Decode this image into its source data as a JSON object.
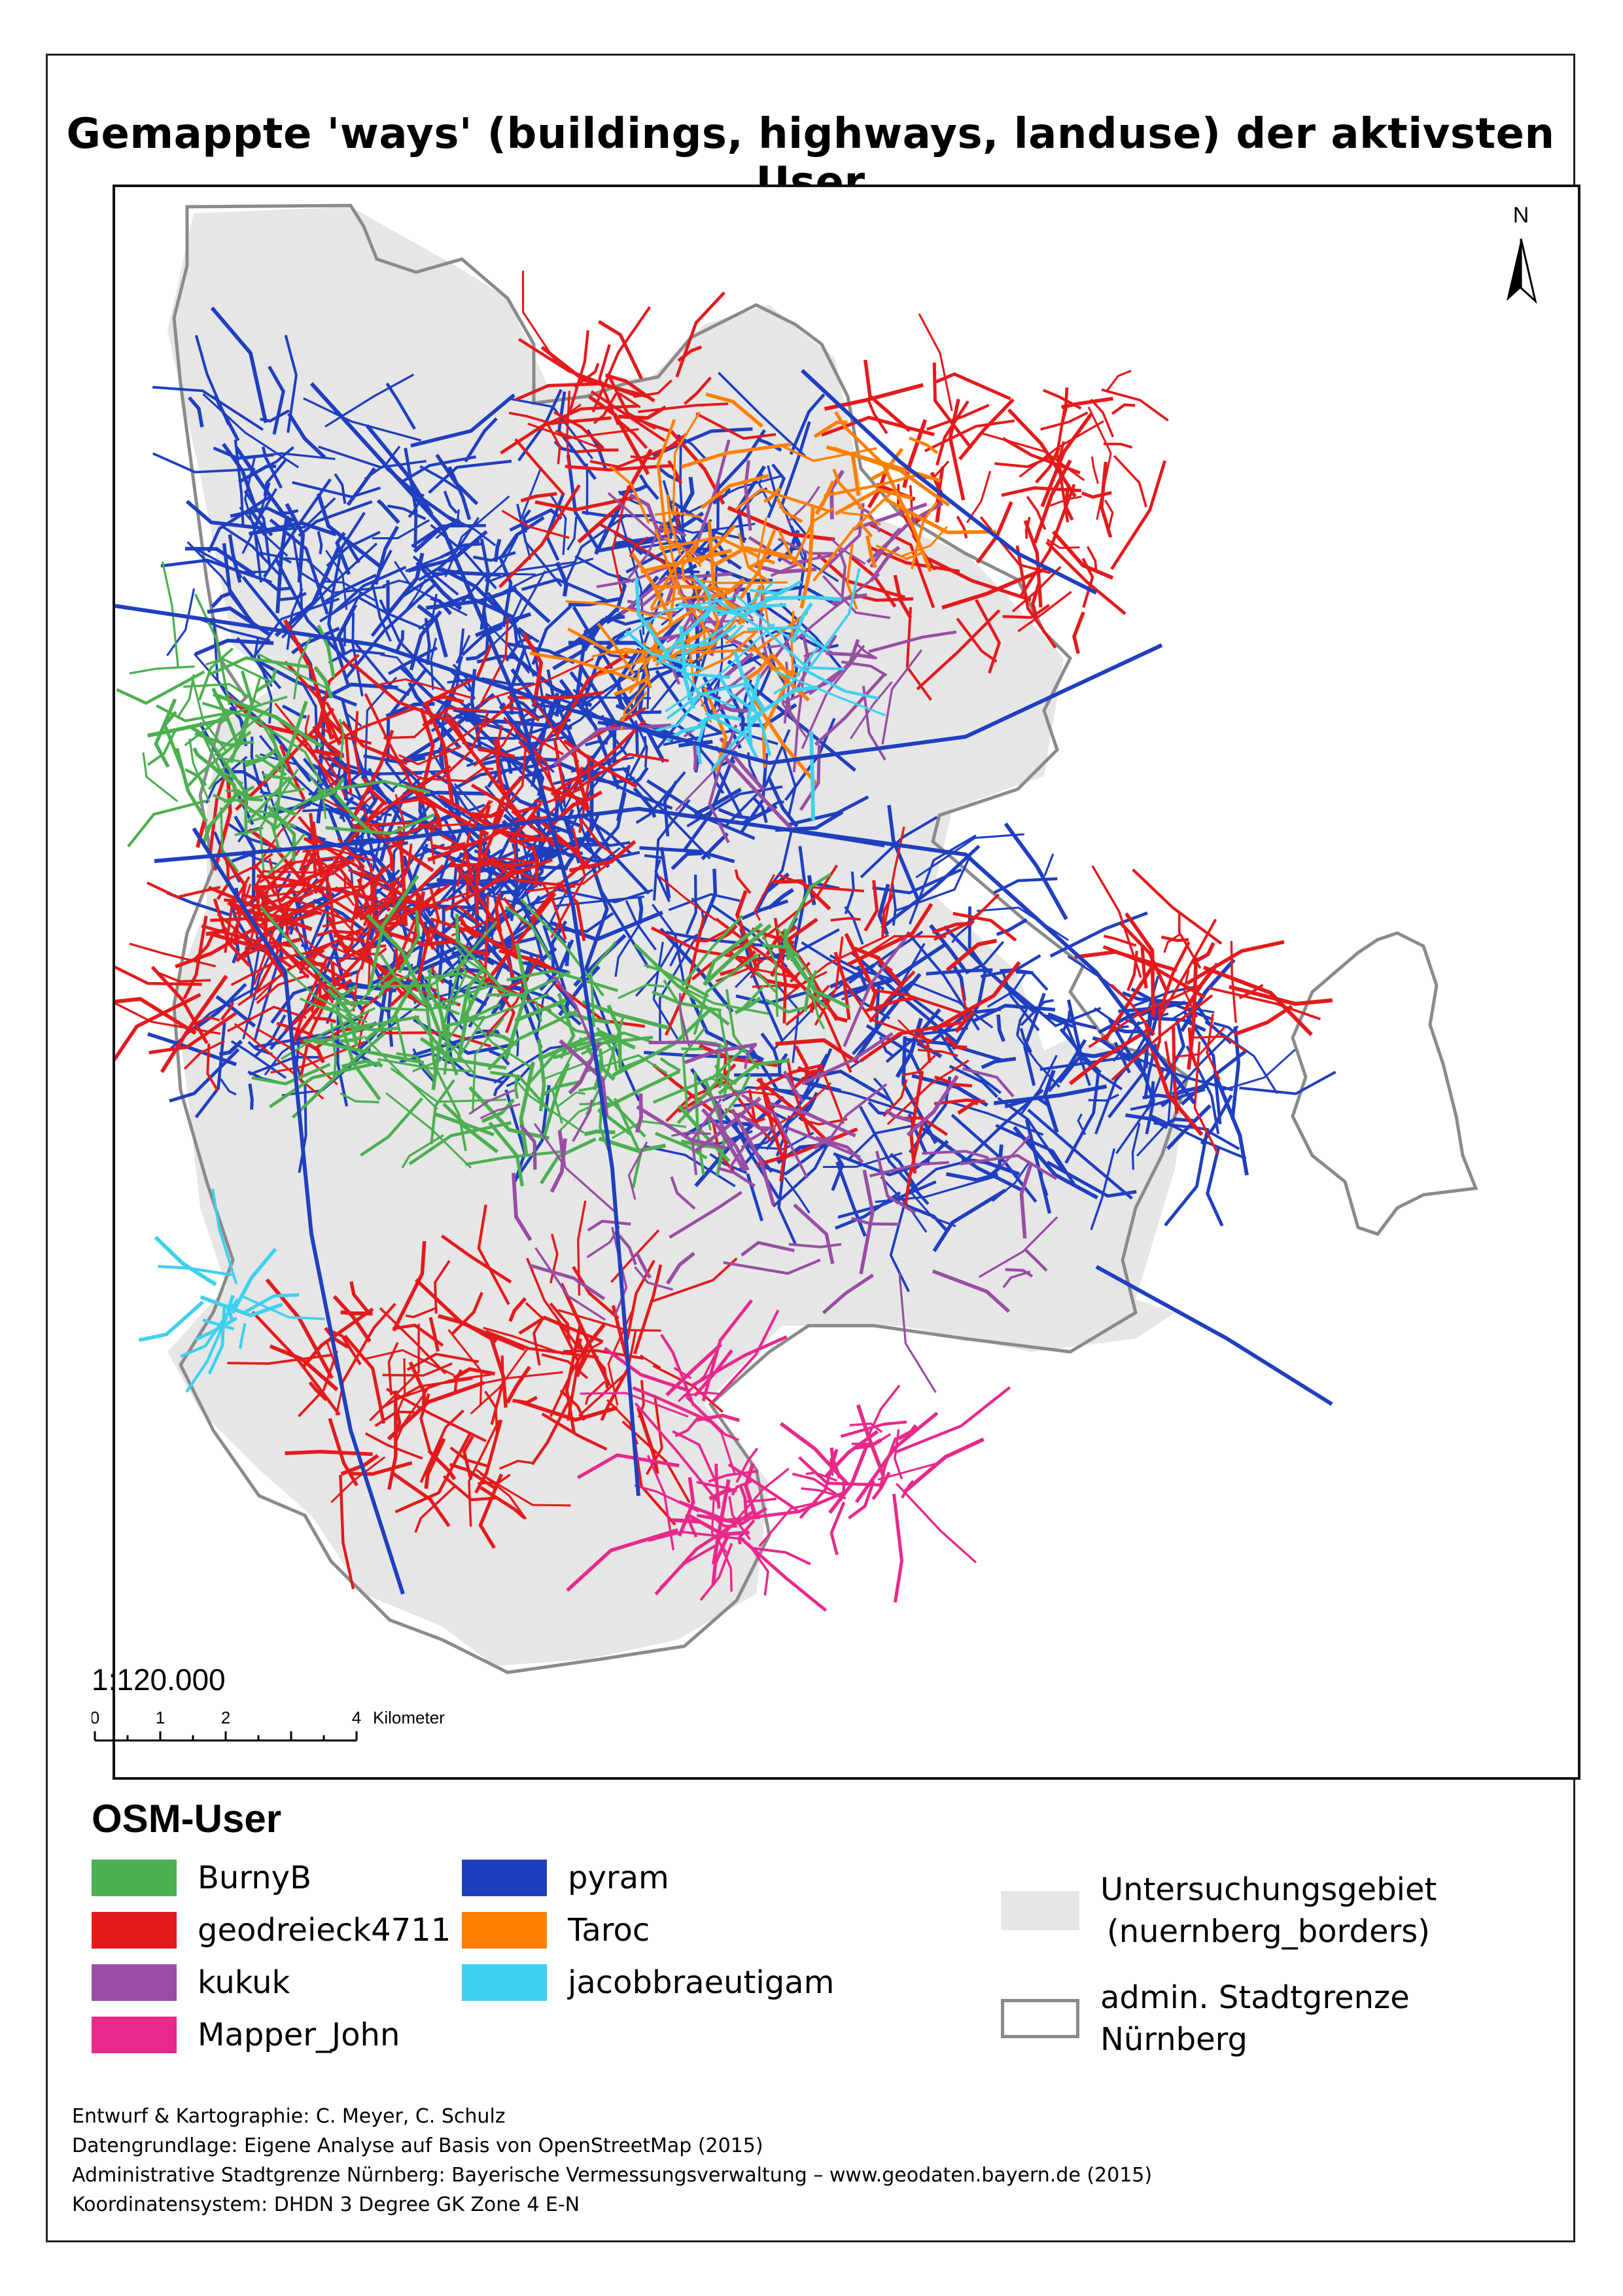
{
  "title": "Gemappte 'ways' (buildings, highways, landuse) der aktivsten User",
  "north_arrow_label": "N",
  "scale": {
    "ratio_label": "1:120.000",
    "tick_labels": [
      "0",
      "1",
      "2",
      "4"
    ],
    "unit_label": "Kilometer"
  },
  "legend": {
    "heading": "OSM-User",
    "users": [
      {
        "name": "BurnyB",
        "color": "#4caf50"
      },
      {
        "name": "geodreieck4711",
        "color": "#e31a1c"
      },
      {
        "name": "kukuk",
        "color": "#984ea3"
      },
      {
        "name": "Mapper_John",
        "color": "#e7298a"
      },
      {
        "name": "pyram",
        "color": "#1f3fbf"
      },
      {
        "name": "Taroc",
        "color": "#ff7f00"
      },
      {
        "name": "jacobbraeutigam",
        "color": "#3fd0f0"
      }
    ],
    "study_area": {
      "line1": "Untersuchungsgebiet",
      "line2": "(nuernberg_borders)",
      "color": "#e6e6e6"
    },
    "admin_border": {
      "line1": "admin. Stadtgrenze",
      "line2": "Nürnberg",
      "color": "#8a8a8a"
    }
  },
  "credits": [
    "Entwurf & Kartographie: C. Meyer, C. Schulz",
    "Datengrundlage: Eigene Analyse auf Basis von OpenStreetMap (2015)",
    "Administrative Stadtgrenze Nürnberg: Bayerische Vermessungsverwaltung –  www.geodaten.bayern.de (2015)",
    "Koordinatensystem: DHDN 3 Degree GK Zone 4 E-N"
  ]
}
